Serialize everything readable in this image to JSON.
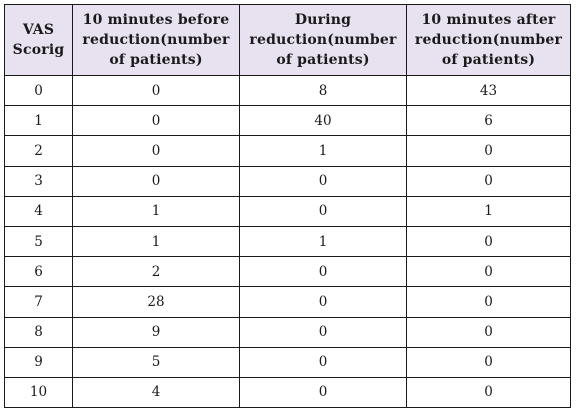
{
  "table": {
    "headers": [
      [
        "VAS",
        "Scorig"
      ],
      [
        "10 minutes before",
        "reduction(number",
        "of patients)"
      ],
      [
        "During",
        "reduction(number",
        "of patients)"
      ],
      [
        "10 minutes after",
        "reduction(number",
        "of patients)"
      ]
    ],
    "rows": [
      [
        "0",
        "0",
        "8",
        "43"
      ],
      [
        "1",
        "0",
        "40",
        "6"
      ],
      [
        "2",
        "0",
        "1",
        "0"
      ],
      [
        "3",
        "0",
        "0",
        "0"
      ],
      [
        "4",
        "1",
        "0",
        "1"
      ],
      [
        "5",
        "1",
        "1",
        "0"
      ],
      [
        "6",
        "2",
        "0",
        "0"
      ],
      [
        "7",
        "28",
        "0",
        "0"
      ],
      [
        "8",
        "9",
        "0",
        "0"
      ],
      [
        "9",
        "5",
        "0",
        "0"
      ],
      [
        "10",
        "4",
        "0",
        "0"
      ]
    ]
  },
  "colors": {
    "header_bg": "#e7e1f0",
    "border": "#1a1a1a",
    "text": "#1a1a1a"
  }
}
